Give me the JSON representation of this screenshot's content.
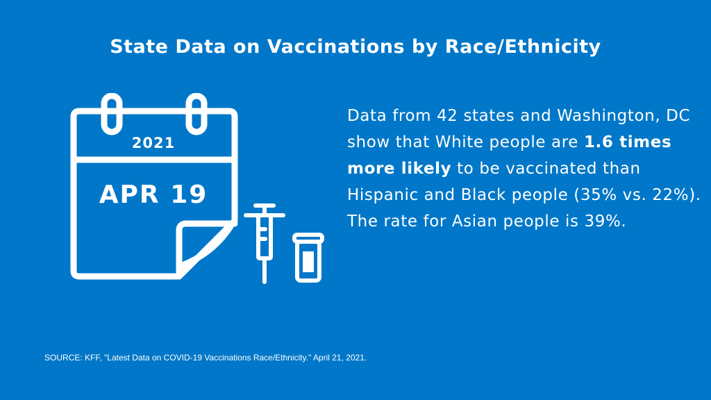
{
  "title": "State Data on Vaccinations by Race/Ethnicity",
  "calendar": {
    "year": "2021",
    "date": "APR 19"
  },
  "body": {
    "part1": "Data from 42 states and Washington, DC show that White people are ",
    "emphasis": "1.6 times more likely",
    "part2": " to be vaccinated than Hispanic and Black people (35% vs. 22%). The rate for Asian people is 39%."
  },
  "source": "SOURCE: KFF, \"Latest Data on COVID-19 Vaccinations Race/Ethnicity.\" April 21, 2021.",
  "colors": {
    "background": "#0077c8",
    "foreground": "#ffffff"
  },
  "icons": [
    "calendar-icon",
    "syringe-icon",
    "vaccine-vial-icon"
  ]
}
